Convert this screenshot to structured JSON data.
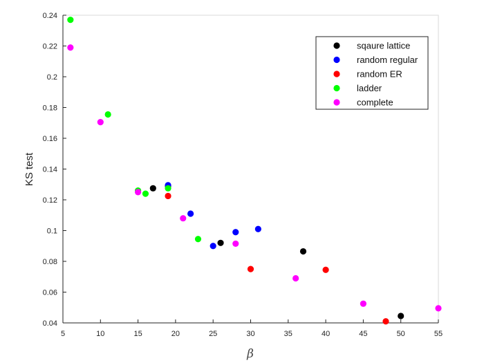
{
  "chart_data": {
    "type": "scatter",
    "title": "",
    "xlabel": "β",
    "ylabel": "KS test",
    "xlim": [
      5,
      55
    ],
    "ylim": [
      0.04,
      0.24
    ],
    "xticks": [
      5,
      10,
      15,
      20,
      25,
      30,
      35,
      40,
      45,
      50,
      55
    ],
    "yticks": [
      0.04,
      0.06,
      0.08,
      0.1,
      0.12,
      0.14,
      0.16,
      0.18,
      0.2,
      0.22,
      0.24
    ],
    "ytick_labels": [
      "0.04",
      "0.06",
      "0.08",
      "0.1",
      "0.12",
      "0.14",
      "0.16",
      "0.18",
      "0.2",
      "0.22",
      "0.24"
    ],
    "grid": false,
    "legend_position": "top-right",
    "series": [
      {
        "name": "sqaure lattice",
        "color": "#000000",
        "points": [
          [
            17,
            0.1275
          ],
          [
            19,
            0.129
          ],
          [
            26,
            0.092
          ],
          [
            37,
            0.0865
          ],
          [
            50,
            0.0445
          ]
        ]
      },
      {
        "name": "random regular",
        "color": "#0000ff",
        "points": [
          [
            19,
            0.1295
          ],
          [
            22,
            0.111
          ],
          [
            25,
            0.09
          ],
          [
            28,
            0.099
          ],
          [
            31,
            0.101
          ]
        ]
      },
      {
        "name": "random ER",
        "color": "#ff0000",
        "points": [
          [
            19,
            0.1225
          ],
          [
            30,
            0.075
          ],
          [
            40,
            0.0745
          ],
          [
            48,
            0.041
          ]
        ]
      },
      {
        "name": "ladder",
        "color": "#00ff00",
        "points": [
          [
            6,
            0.237
          ],
          [
            11,
            0.1755
          ],
          [
            15,
            0.126
          ],
          [
            16,
            0.124
          ],
          [
            19,
            0.1275
          ],
          [
            23,
            0.0945
          ]
        ]
      },
      {
        "name": "complete",
        "color": "#ff00ff",
        "points": [
          [
            6,
            0.219
          ],
          [
            10,
            0.1705
          ],
          [
            15,
            0.125
          ],
          [
            21,
            0.108
          ],
          [
            28,
            0.0915
          ],
          [
            36,
            0.069
          ],
          [
            45,
            0.0525
          ],
          [
            55,
            0.0495
          ]
        ]
      }
    ]
  }
}
